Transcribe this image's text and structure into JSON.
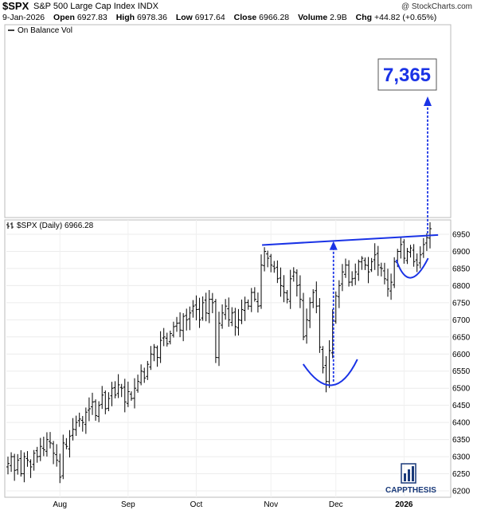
{
  "header": {
    "symbol": "$SPX",
    "name": "S&P 500 Large Cap Index",
    "exchange": "INDX",
    "copyright": "@ StockCharts.com",
    "date": "9-Jan-2026",
    "open_label": "Open",
    "open": "6927.83",
    "high_label": "High",
    "high": "6978.36",
    "low_label": "Low",
    "low": "6917.64",
    "close_label": "Close",
    "close": "6966.28",
    "volume_label": "Volume",
    "volume": "2.9B",
    "chg_label": "Chg",
    "chg": "+44.82 (+0.65%)"
  },
  "indicator_panel": {
    "legend": "On Balance Vol"
  },
  "price_panel": {
    "legend": "$SPX (Daily) 6966.28"
  },
  "annotation": {
    "target_label": "7,365",
    "color": "#1a33e6"
  },
  "logo": {
    "text": "CAPPTHESIS"
  },
  "chart_data": {
    "type": "ohlc",
    "ylim": [
      6190,
      7000
    ],
    "y_ticks": [
      6200,
      6250,
      6300,
      6350,
      6400,
      6450,
      6500,
      6550,
      6600,
      6650,
      6700,
      6750,
      6800,
      6850,
      6900,
      6950
    ],
    "x_labels": [
      {
        "label": "Aug",
        "index": 16
      },
      {
        "label": "Sep",
        "index": 37
      },
      {
        "label": "Oct",
        "index": 58
      },
      {
        "label": "Nov",
        "index": 81
      },
      {
        "label": "Dec",
        "index": 101
      },
      {
        "label": "2026",
        "index": 122,
        "bold": true
      }
    ],
    "closes": [
      6280,
      6300,
      6260,
      6290,
      6250,
      6300,
      6290,
      6270,
      6310,
      6300,
      6330,
      6320,
      6350,
      6340,
      6310,
      6290,
      6240,
      6340,
      6330,
      6360,
      6380,
      6400,
      6410,
      6400,
      6430,
      6440,
      6460,
      6420,
      6450,
      6480,
      6440,
      6470,
      6500,
      6480,
      6510,
      6500,
      6460,
      6490,
      6470,
      6500,
      6520,
      6550,
      6530,
      6570,
      6600,
      6620,
      6590,
      6640,
      6650,
      6630,
      6660,
      6680,
      6690,
      6670,
      6710,
      6700,
      6720,
      6740,
      6730,
      6700,
      6750,
      6720,
      6760,
      6750,
      6590,
      6690,
      6720,
      6740,
      6700,
      6720,
      6680,
      6700,
      6730,
      6750,
      6740,
      6780,
      6760,
      6740,
      6860,
      6900,
      6880,
      6860,
      6850,
      6820,
      6800,
      6780,
      6760,
      6820,
      6840,
      6800,
      6760,
      6650,
      6700,
      6750,
      6780,
      6740,
      6620,
      6560,
      6520,
      6610,
      6700,
      6770,
      6800,
      6840,
      6860,
      6810,
      6820,
      6840,
      6870,
      6880,
      6860,
      6840,
      6870,
      6890,
      6860,
      6850,
      6820,
      6790,
      6810,
      6870,
      6900,
      6920,
      6880,
      6900,
      6910,
      6870,
      6860,
      6890,
      6920,
      6940,
      6966.28
    ],
    "channel_top": [
      {
        "index": 79,
        "value": 6921
      },
      {
        "index": 132,
        "value": 6948
      }
    ],
    "patterns": [
      {
        "name": "left-bottom-arc",
        "low": 6510
      },
      {
        "name": "right-bottom-arc",
        "low": 6810
      }
    ],
    "target": {
      "value": 7365,
      "label": "7,365"
    }
  }
}
